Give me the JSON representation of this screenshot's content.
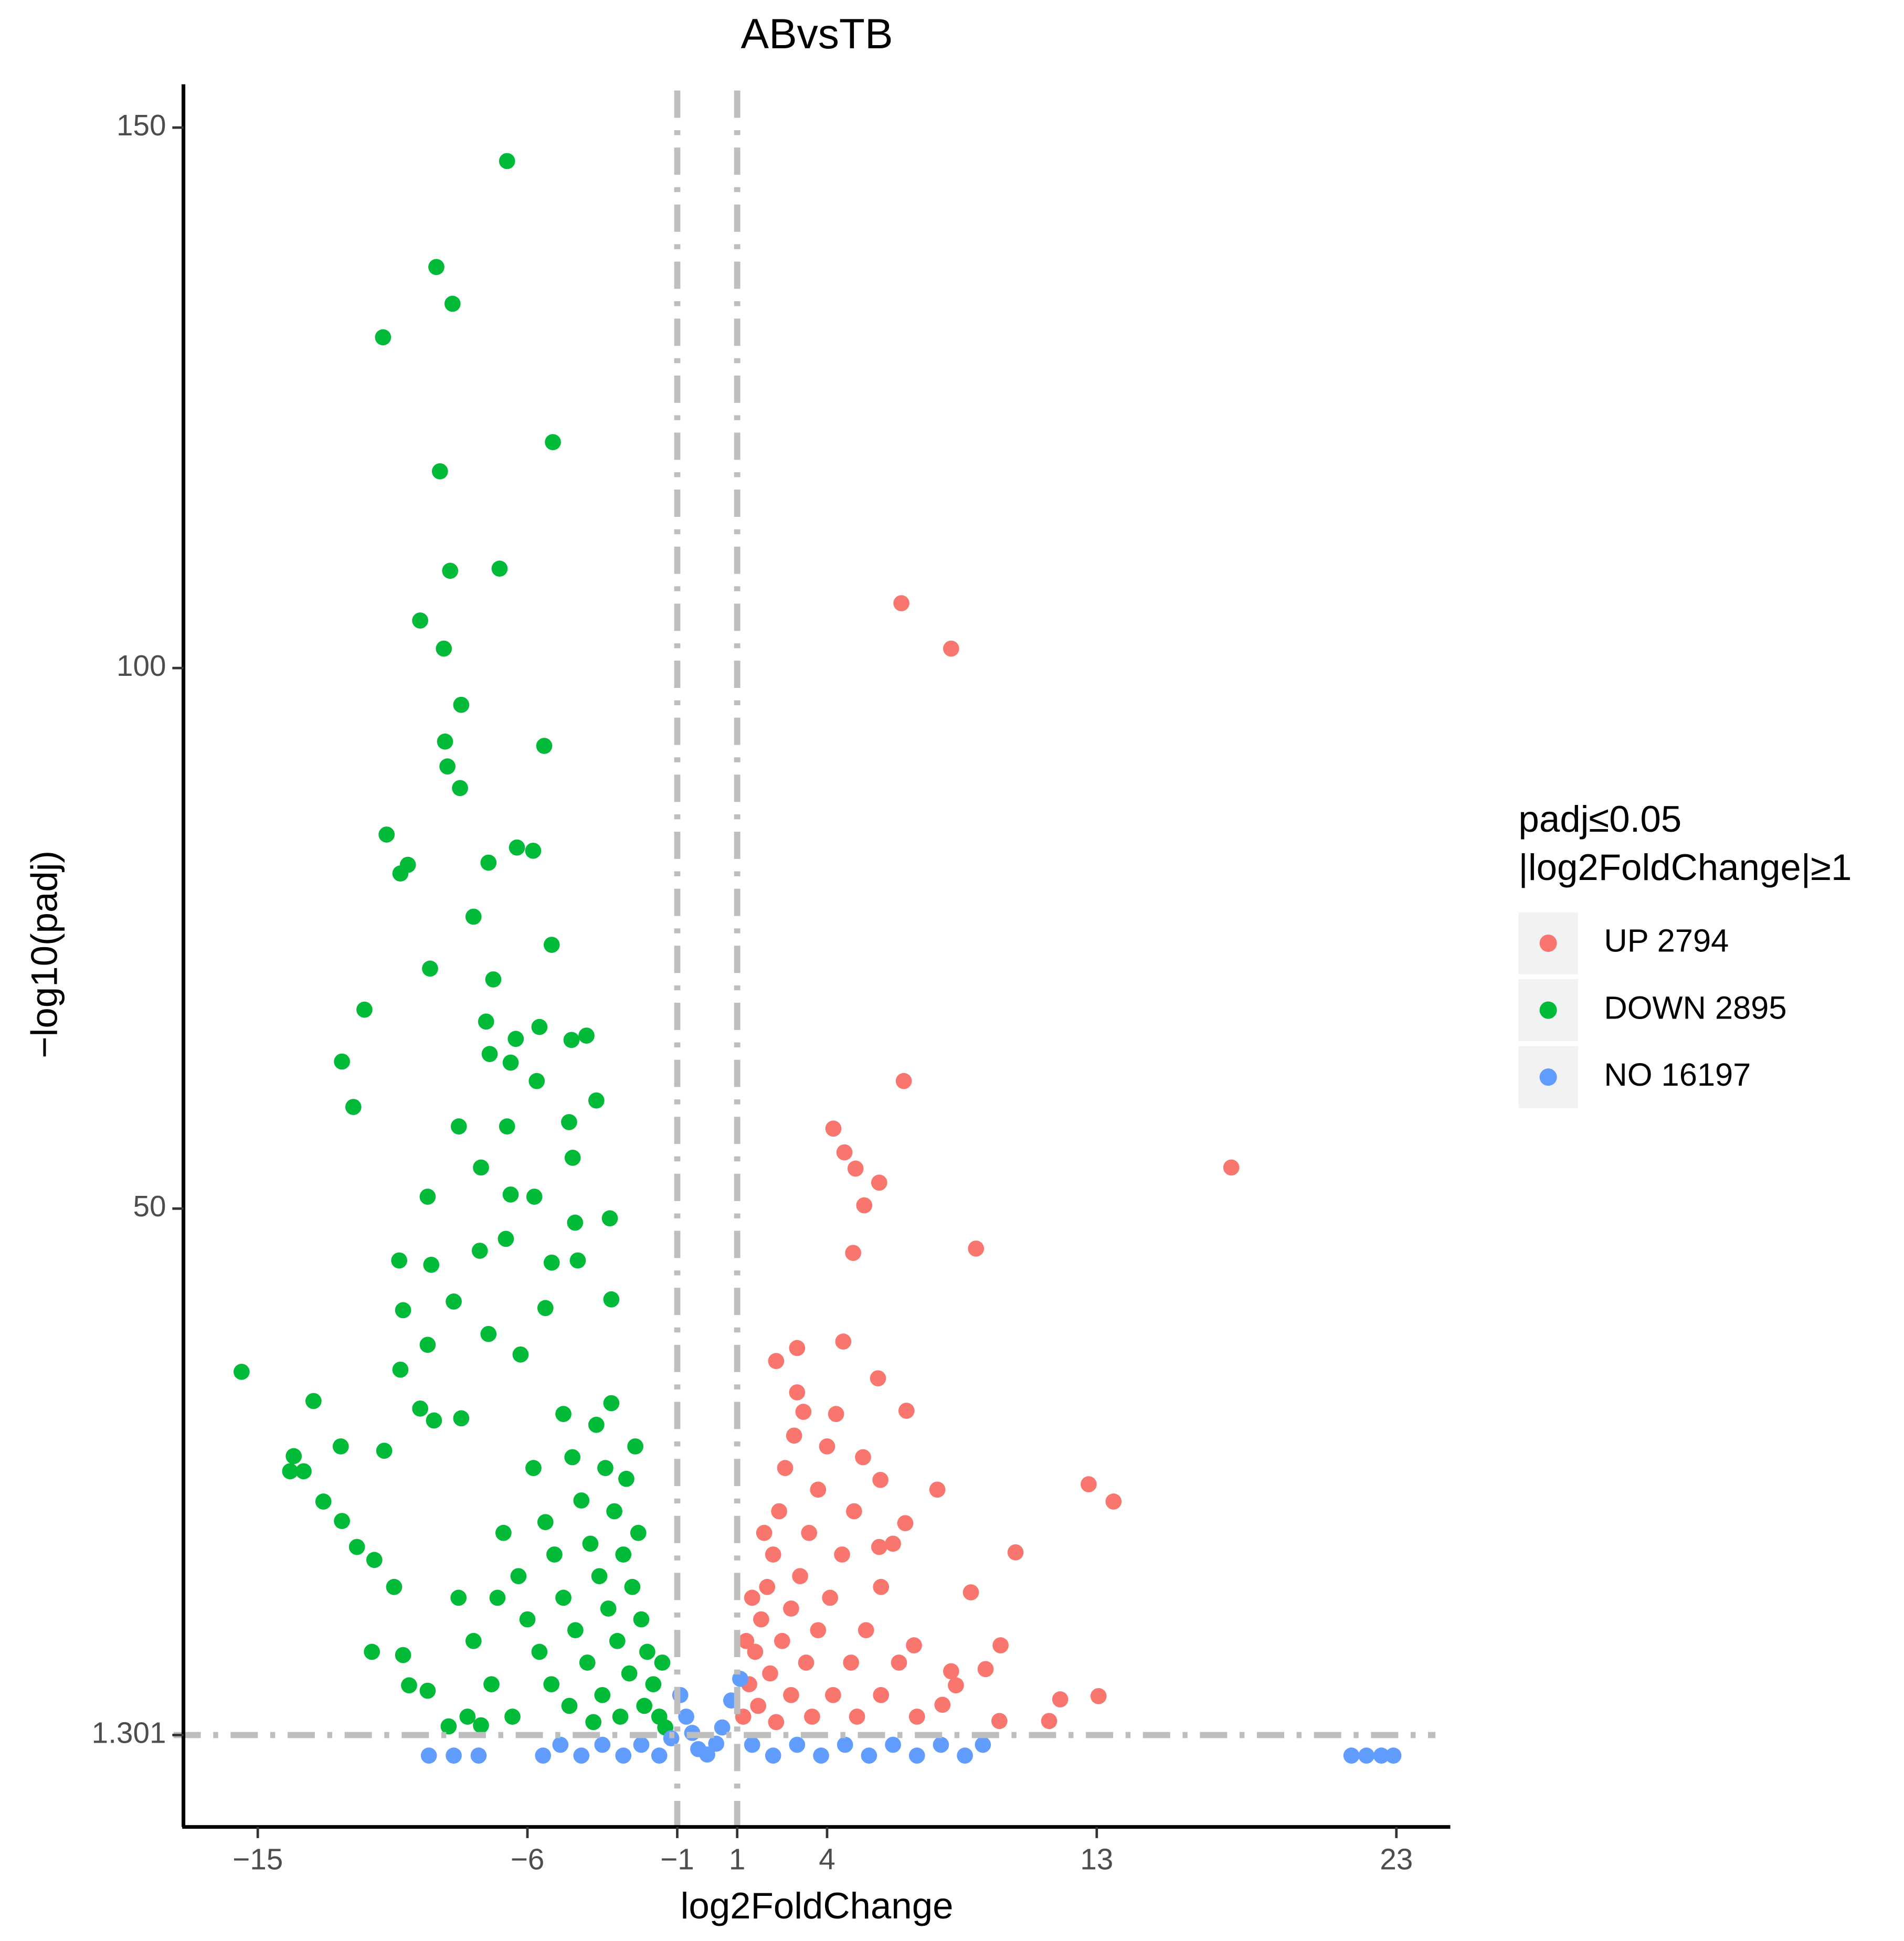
{
  "chart_data": {
    "type": "scatter",
    "title": "ABvsTB",
    "x_label": "log2FoldChange",
    "y_label": "−log10(padj)",
    "legend_title": [
      "padj≤0.05",
      "|log2FoldChange|≥1"
    ],
    "legend_position": "right",
    "xlim": [
      -17.48,
      24.8
    ],
    "ylim": [
      -7.2,
      154
    ],
    "xticks": [
      {
        "value": -15,
        "label": "−15"
      },
      {
        "value": -6,
        "label": "−6"
      },
      {
        "value": -1,
        "label": "−1"
      },
      1,
      4,
      13,
      23
    ],
    "yticks": [
      1.301,
      50,
      100,
      150
    ],
    "thresholds": {
      "x": [
        -1,
        1
      ],
      "y": 1.301
    },
    "series": [
      {
        "name": "UP 2794",
        "color": "#F8766D",
        "x": [
          6.48,
          8.14,
          6.56,
          17.49,
          4.21,
          4.58,
          4.95,
          5.74,
          5.24,
          8.97,
          4.87,
          4.54,
          3.0,
          2.3,
          5.7,
          6.65,
          3.21,
          12.73,
          13.56,
          7.68,
          5.78,
          6.61,
          10.29,
          8.8,
          5.74,
          9.79,
          6.9,
          9.29,
          8.14,
          8.3,
          13.06,
          11.78,
          11.41,
          9.75,
          7.85,
          1.2,
          1.4,
          1.6,
          1.8,
          2.0,
          2.2,
          2.4,
          2.6,
          2.9,
          1.7,
          2.1,
          2.5,
          2.8,
          3.1,
          3.4,
          3.7,
          4.0,
          2.3,
          2.8,
          3.3,
          3.7,
          4.1,
          4.5,
          4.9,
          3.5,
          4.2,
          4.8,
          5.3,
          5.8,
          6.2,
          5.0,
          5.8,
          6.4,
          7.0,
          1.3,
          1.5,
          1.9,
          3.0,
          4.3,
          5.2
        ],
        "y": [
          106.0,
          101.8,
          61.8,
          53.8,
          57.4,
          55.2,
          53.7,
          52.4,
          50.3,
          46.3,
          45.9,
          37.7,
          37.1,
          35.9,
          34.3,
          31.3,
          31.2,
          24.5,
          22.9,
          24.0,
          24.9,
          20.9,
          18.2,
          14.5,
          18.7,
          9.6,
          9.6,
          7.4,
          7.2,
          5.9,
          4.9,
          4.6,
          2.6,
          2.6,
          4.1,
          3,
          6,
          9,
          12,
          15,
          18,
          22,
          26,
          29,
          4,
          7,
          10,
          13,
          16,
          20,
          24,
          28,
          2.5,
          5,
          8,
          11,
          14,
          18,
          22,
          3,
          5,
          8,
          11,
          15,
          19,
          3,
          5,
          8,
          3,
          10,
          14,
          20,
          33,
          31,
          27
        ]
      },
      {
        "name": "DOWN 2895",
        "color": "#00BA38",
        "x": [
          -6.68,
          -9.04,
          -8.5,
          -10.82,
          -5.15,
          -8.92,
          -8.58,
          -6.93,
          -9.58,
          -8.79,
          -8.21,
          -5.44,
          -8.75,
          -8.67,
          -8.25,
          -10.7,
          -6.35,
          -5.81,
          -9.99,
          -10.24,
          -7.3,
          -7.8,
          -5.19,
          -9.25,
          -7.14,
          -11.44,
          -7.38,
          -12.19,
          -11.81,
          -5.6,
          -4.03,
          -4.53,
          -6.39,
          -7.26,
          -6.56,
          -5.69,
          -3.7,
          -8.29,
          -6.68,
          -4.61,
          -4.49,
          -7.55,
          -6.56,
          -5.77,
          -9.33,
          -4.41,
          -3.25,
          -10.28,
          -9.21,
          -7.59,
          -6.72,
          -5.19,
          -4.32,
          -10.15,
          -8.46,
          -5.4,
          -3.2,
          -9.33,
          -10.24,
          -15.54,
          -13.14,
          -7.3,
          -6.23,
          -9.58,
          -9.12,
          -8.21,
          -13.8,
          -12.23,
          -10.78,
          -13.92,
          -13.47,
          -12.81,
          -12.19,
          -11.69,
          -11.11,
          -10.45,
          -11.19,
          -10.15,
          -9.95,
          -9.33,
          -8.63,
          -7.55,
          -1.6,
          -1.8,
          -2.0,
          -2.2,
          -2.5,
          -2.8,
          -3.1,
          -3.4,
          -3.7,
          -2.1,
          -2.6,
          -3.0,
          -3.3,
          -3.6,
          -3.9,
          -4.2,
          -4.5,
          -2.9,
          -3.5,
          -4.0,
          -4.4,
          -4.8,
          -5.1,
          -5.4,
          -3.8,
          -4.6,
          -5.2,
          -5.6,
          -6.0,
          -6.3,
          -6.8,
          -7.2,
          -7.8,
          -8.3,
          -1.4,
          -1.5,
          -2.3,
          -2.7,
          -3.2,
          -2.4,
          -4.8,
          -5.8,
          -6.5,
          -7.0,
          -8.0
        ],
        "y": [
          146.9,
          137.1,
          133.7,
          130.6,
          120.9,
          118.2,
          109.0,
          109.2,
          104.4,
          101.8,
          96.6,
          92.8,
          93.2,
          90.9,
          88.9,
          84.6,
          83.4,
          83.1,
          81.8,
          81.0,
          82.0,
          77.0,
          74.4,
          72.2,
          71.2,
          68.4,
          67.3,
          63.6,
          59.4,
          66.8,
          66.0,
          65.6,
          65.7,
          64.3,
          63.5,
          61.8,
          60.0,
          57.6,
          57.6,
          58.0,
          54.7,
          53.8,
          51.3,
          51.1,
          51.1,
          48.7,
          49.1,
          45.2,
          44.8,
          46.1,
          47.2,
          45.0,
          45.2,
          40.6,
          41.4,
          40.8,
          41.6,
          37.4,
          35.1,
          34.9,
          32.2,
          38.4,
          36.5,
          31.5,
          30.4,
          30.6,
          27.1,
          28.0,
          27.6,
          25.7,
          25.7,
          22.9,
          21.1,
          18.7,
          17.5,
          15.0,
          9.0,
          8.7,
          5.9,
          5.4,
          2.1,
          2.2,
          3,
          6,
          9,
          12,
          15,
          18,
          22,
          26,
          30,
          4,
          7,
          10,
          13,
          16,
          19,
          23,
          27,
          3,
          5,
          8,
          11,
          14,
          18,
          21,
          2.5,
          4,
          6,
          9,
          12,
          16,
          20,
          6,
          10,
          14,
          2,
          8,
          20,
          25,
          32,
          28,
          31,
          26,
          3,
          14,
          3
        ]
      },
      {
        "name": "NO 16197",
        "color": "#619CFF",
        "x": [
          -9.29,
          -8.46,
          -7.63,
          -5.48,
          -4.9,
          -4.2,
          -3.5,
          -2.8,
          -2.2,
          -1.6,
          -1.2,
          -0.9,
          -0.7,
          -0.5,
          -0.3,
          0,
          0.3,
          0.5,
          0.8,
          1.1,
          1.5,
          2.2,
          3.0,
          3.8,
          4.6,
          5.4,
          6.2,
          7.0,
          7.8,
          8.6,
          9.2,
          21.5,
          22.0,
          22.5,
          22.9
        ],
        "y": [
          -0.6,
          -0.6,
          -0.6,
          -0.6,
          0.4,
          -0.6,
          0.4,
          -0.6,
          0.4,
          -0.6,
          1.0,
          5,
          3,
          1.5,
          0,
          -0.5,
          0.5,
          2,
          4.5,
          6.5,
          0.4,
          -0.6,
          0.4,
          -0.6,
          0.4,
          -0.6,
          0.4,
          -0.6,
          0.4,
          -0.6,
          0.4,
          -0.6,
          -0.6,
          -0.6,
          -0.6
        ]
      }
    ]
  }
}
